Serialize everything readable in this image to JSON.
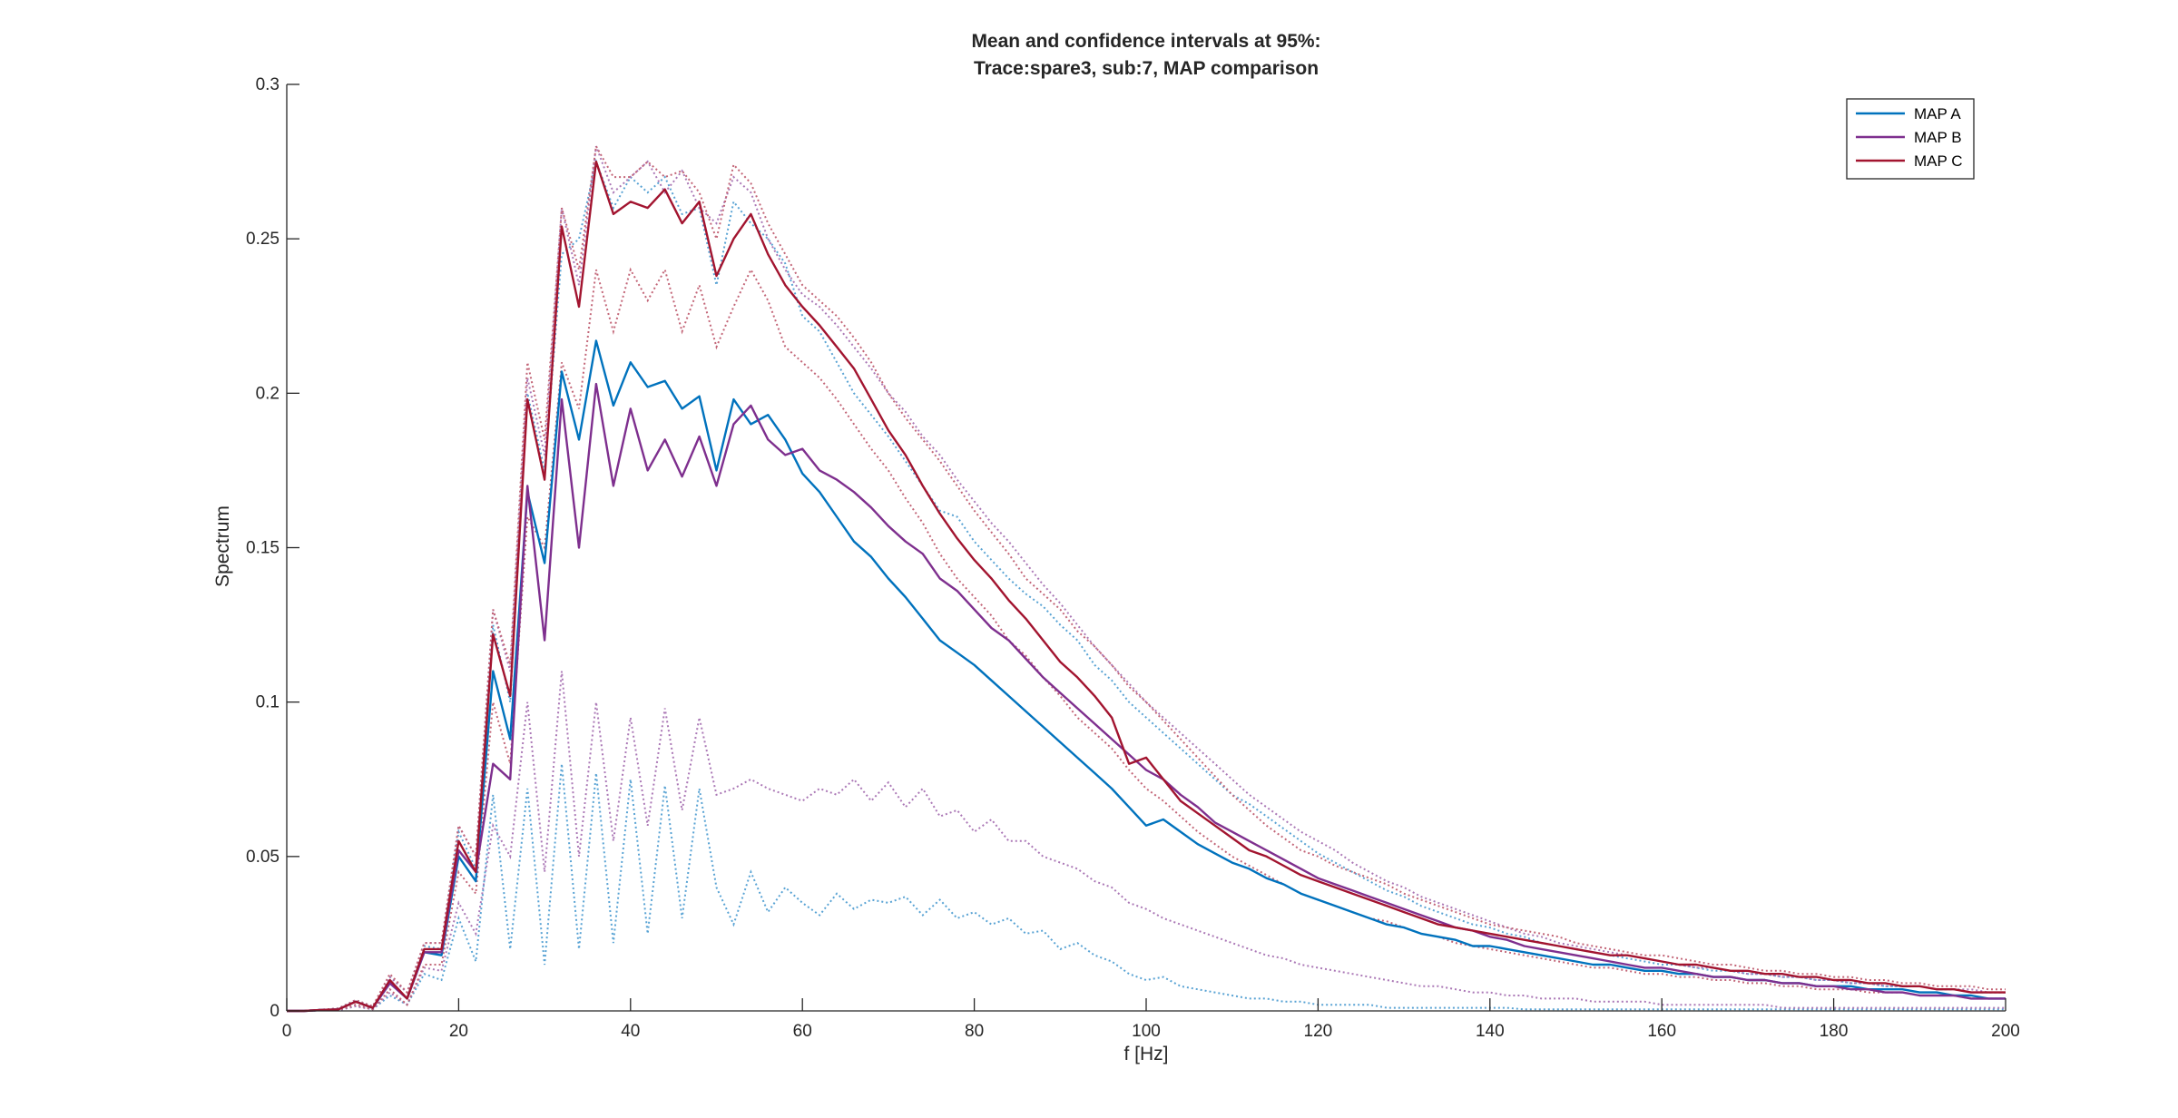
{
  "chart_data": {
    "type": "line",
    "title": "Mean and confidence intervals at 95%:",
    "subtitle": "Trace:spare3, sub:7, MAP comparison",
    "xlabel": "f [Hz]",
    "ylabel": "Spectrum",
    "xlim": [
      0,
      200
    ],
    "ylim": [
      0,
      0.3
    ],
    "xticks": [
      0,
      20,
      40,
      60,
      80,
      100,
      120,
      140,
      160,
      180,
      200
    ],
    "yticks": [
      0,
      0.05,
      0.1,
      0.15,
      0.2,
      0.25,
      0.3
    ],
    "ytick_labels": [
      "0",
      "0.05",
      "0.1",
      "0.15",
      "0.2",
      "0.25",
      "0.3"
    ],
    "grid": false,
    "legend_position": "top-right",
    "x": [
      0,
      2,
      4,
      6,
      8,
      10,
      12,
      14,
      16,
      18,
      20,
      22,
      24,
      26,
      28,
      30,
      32,
      34,
      36,
      38,
      40,
      42,
      44,
      46,
      48,
      50,
      52,
      54,
      56,
      58,
      60,
      62,
      64,
      66,
      68,
      70,
      72,
      74,
      76,
      78,
      80,
      82,
      84,
      86,
      88,
      90,
      92,
      94,
      96,
      98,
      100,
      102,
      104,
      106,
      108,
      110,
      112,
      114,
      116,
      118,
      120,
      122,
      124,
      126,
      128,
      130,
      132,
      134,
      136,
      138,
      140,
      142,
      144,
      146,
      148,
      150,
      152,
      154,
      156,
      158,
      160,
      162,
      164,
      166,
      168,
      170,
      172,
      174,
      176,
      178,
      180,
      182,
      184,
      186,
      188,
      190,
      192,
      194,
      196,
      198,
      200
    ],
    "series": [
      {
        "name": "MAP A",
        "color": "#0072BD",
        "mean": [
          0,
          0,
          0.0003,
          0.0005,
          0.003,
          0.001,
          0.009,
          0.004,
          0.019,
          0.018,
          0.05,
          0.042,
          0.11,
          0.088,
          0.168,
          0.145,
          0.207,
          0.185,
          0.217,
          0.196,
          0.21,
          0.202,
          0.204,
          0.195,
          0.199,
          0.175,
          0.198,
          0.19,
          0.193,
          0.185,
          0.174,
          0.168,
          0.16,
          0.152,
          0.147,
          0.14,
          0.134,
          0.127,
          0.12,
          0.116,
          0.112,
          0.107,
          0.102,
          0.097,
          0.092,
          0.087,
          0.082,
          0.077,
          0.072,
          0.066,
          0.06,
          0.062,
          0.058,
          0.054,
          0.051,
          0.048,
          0.046,
          0.043,
          0.041,
          0.038,
          0.036,
          0.034,
          0.032,
          0.03,
          0.028,
          0.027,
          0.025,
          0.024,
          0.023,
          0.021,
          0.021,
          0.02,
          0.019,
          0.018,
          0.017,
          0.016,
          0.015,
          0.015,
          0.014,
          0.013,
          0.013,
          0.012,
          0.012,
          0.011,
          0.011,
          0.01,
          0.01,
          0.009,
          0.009,
          0.008,
          0.008,
          0.008,
          0.007,
          0.007,
          0.007,
          0.006,
          0.006,
          0.005,
          0.005,
          0.004,
          0.004
        ],
        "ci_upper": [
          0,
          0,
          0.0004,
          0.0008,
          0.0035,
          0.0015,
          0.011,
          0.006,
          0.021,
          0.02,
          0.058,
          0.046,
          0.125,
          0.1,
          0.2,
          0.175,
          0.245,
          0.25,
          0.275,
          0.26,
          0.27,
          0.265,
          0.27,
          0.258,
          0.26,
          0.235,
          0.262,
          0.255,
          0.25,
          0.242,
          0.225,
          0.22,
          0.21,
          0.2,
          0.193,
          0.186,
          0.178,
          0.17,
          0.162,
          0.16,
          0.152,
          0.146,
          0.14,
          0.135,
          0.131,
          0.125,
          0.12,
          0.112,
          0.107,
          0.1,
          0.095,
          0.09,
          0.085,
          0.08,
          0.075,
          0.07,
          0.067,
          0.063,
          0.059,
          0.055,
          0.051,
          0.048,
          0.045,
          0.042,
          0.039,
          0.037,
          0.034,
          0.032,
          0.03,
          0.028,
          0.027,
          0.025,
          0.024,
          0.022,
          0.021,
          0.02,
          0.019,
          0.018,
          0.017,
          0.016,
          0.015,
          0.015,
          0.014,
          0.013,
          0.013,
          0.012,
          0.012,
          0.011,
          0.011,
          0.01,
          0.01,
          0.009,
          0.009,
          0.008,
          0.008,
          0.008,
          0.007,
          0.007,
          0.006,
          0.006,
          0.006
        ],
        "ci_lower": [
          0,
          0,
          0.0002,
          0.0002,
          0.0015,
          0.0005,
          0.005,
          0.002,
          0.012,
          0.01,
          0.03,
          0.016,
          0.07,
          0.02,
          0.072,
          0.015,
          0.08,
          0.02,
          0.077,
          0.022,
          0.075,
          0.025,
          0.073,
          0.03,
          0.072,
          0.04,
          0.028,
          0.045,
          0.032,
          0.04,
          0.035,
          0.031,
          0.038,
          0.033,
          0.036,
          0.035,
          0.037,
          0.031,
          0.036,
          0.03,
          0.032,
          0.028,
          0.03,
          0.025,
          0.026,
          0.02,
          0.022,
          0.018,
          0.016,
          0.012,
          0.01,
          0.011,
          0.008,
          0.007,
          0.006,
          0.005,
          0.004,
          0.004,
          0.003,
          0.003,
          0.002,
          0.002,
          0.002,
          0.002,
          0.001,
          0.001,
          0.001,
          0.001,
          0.001,
          0.001,
          0.001,
          0.001,
          0.0005,
          0.0005,
          0.0005,
          0.0005,
          0.0005,
          0.0005,
          0.0005,
          0.0005,
          0.0005,
          0.0005,
          0.0005,
          0.0005,
          0.0005,
          0.0005,
          0.0005,
          0.0005,
          0.0005,
          0.0005,
          0.0005,
          0.0005,
          0.0005,
          0.0005,
          0.0005,
          0.0005,
          0.0005,
          0.0005,
          0.0005,
          0.0005,
          0.0005
        ]
      },
      {
        "name": "MAP B",
        "color": "#7E2F8E",
        "mean": [
          0,
          0,
          0.0003,
          0.0005,
          0.003,
          0.001,
          0.009,
          0.004,
          0.019,
          0.019,
          0.052,
          0.045,
          0.08,
          0.075,
          0.17,
          0.12,
          0.198,
          0.15,
          0.203,
          0.17,
          0.195,
          0.175,
          0.185,
          0.173,
          0.186,
          0.17,
          0.19,
          0.196,
          0.185,
          0.18,
          0.182,
          0.175,
          0.172,
          0.168,
          0.163,
          0.157,
          0.152,
          0.148,
          0.14,
          0.136,
          0.13,
          0.124,
          0.12,
          0.114,
          0.108,
          0.103,
          0.098,
          0.093,
          0.088,
          0.083,
          0.078,
          0.075,
          0.07,
          0.066,
          0.061,
          0.058,
          0.055,
          0.052,
          0.049,
          0.046,
          0.043,
          0.041,
          0.039,
          0.037,
          0.035,
          0.033,
          0.031,
          0.029,
          0.027,
          0.026,
          0.024,
          0.023,
          0.021,
          0.02,
          0.019,
          0.018,
          0.017,
          0.016,
          0.015,
          0.014,
          0.014,
          0.013,
          0.012,
          0.011,
          0.011,
          0.01,
          0.01,
          0.009,
          0.009,
          0.008,
          0.008,
          0.007,
          0.007,
          0.006,
          0.006,
          0.005,
          0.005,
          0.005,
          0.004,
          0.004,
          0.004
        ],
        "ci_upper": [
          0,
          0,
          0.0004,
          0.0008,
          0.0035,
          0.0015,
          0.011,
          0.006,
          0.022,
          0.022,
          0.06,
          0.05,
          0.13,
          0.11,
          0.205,
          0.18,
          0.26,
          0.235,
          0.28,
          0.265,
          0.27,
          0.275,
          0.265,
          0.272,
          0.26,
          0.255,
          0.27,
          0.265,
          0.25,
          0.24,
          0.232,
          0.228,
          0.222,
          0.215,
          0.208,
          0.2,
          0.194,
          0.186,
          0.18,
          0.172,
          0.165,
          0.158,
          0.152,
          0.145,
          0.138,
          0.132,
          0.125,
          0.118,
          0.112,
          0.106,
          0.1,
          0.095,
          0.09,
          0.085,
          0.08,
          0.075,
          0.07,
          0.066,
          0.062,
          0.058,
          0.055,
          0.052,
          0.048,
          0.045,
          0.042,
          0.04,
          0.037,
          0.035,
          0.033,
          0.031,
          0.029,
          0.027,
          0.025,
          0.024,
          0.022,
          0.021,
          0.02,
          0.019,
          0.018,
          0.017,
          0.016,
          0.015,
          0.014,
          0.014,
          0.013,
          0.012,
          0.012,
          0.011,
          0.011,
          0.01,
          0.01,
          0.009,
          0.009,
          0.008,
          0.008,
          0.008,
          0.007,
          0.007,
          0.007,
          0.006,
          0.006
        ],
        "ci_lower": [
          0,
          0,
          0.0002,
          0.0002,
          0.0015,
          0.0005,
          0.006,
          0.002,
          0.014,
          0.013,
          0.035,
          0.025,
          0.06,
          0.05,
          0.1,
          0.045,
          0.11,
          0.05,
          0.1,
          0.055,
          0.095,
          0.06,
          0.098,
          0.065,
          0.095,
          0.07,
          0.072,
          0.075,
          0.072,
          0.07,
          0.068,
          0.072,
          0.07,
          0.075,
          0.068,
          0.074,
          0.066,
          0.072,
          0.063,
          0.065,
          0.058,
          0.062,
          0.055,
          0.055,
          0.05,
          0.048,
          0.046,
          0.042,
          0.04,
          0.035,
          0.033,
          0.03,
          0.028,
          0.026,
          0.024,
          0.022,
          0.02,
          0.018,
          0.017,
          0.015,
          0.014,
          0.013,
          0.012,
          0.011,
          0.01,
          0.009,
          0.008,
          0.008,
          0.007,
          0.006,
          0.006,
          0.005,
          0.005,
          0.004,
          0.004,
          0.004,
          0.003,
          0.003,
          0.003,
          0.003,
          0.002,
          0.002,
          0.002,
          0.002,
          0.002,
          0.002,
          0.002,
          0.001,
          0.001,
          0.001,
          0.001,
          0.001,
          0.001,
          0.001,
          0.001,
          0.001,
          0.001,
          0.001,
          0.001,
          0.001,
          0.001
        ]
      },
      {
        "name": "MAP C",
        "color": "#A2142F",
        "mean": [
          0,
          0,
          0.0003,
          0.0005,
          0.003,
          0.001,
          0.01,
          0.004,
          0.02,
          0.02,
          0.055,
          0.045,
          0.122,
          0.102,
          0.198,
          0.172,
          0.254,
          0.228,
          0.275,
          0.258,
          0.262,
          0.26,
          0.266,
          0.255,
          0.262,
          0.238,
          0.25,
          0.258,
          0.245,
          0.235,
          0.228,
          0.222,
          0.215,
          0.208,
          0.198,
          0.188,
          0.18,
          0.17,
          0.161,
          0.153,
          0.146,
          0.14,
          0.133,
          0.127,
          0.12,
          0.113,
          0.108,
          0.102,
          0.095,
          0.08,
          0.082,
          0.075,
          0.068,
          0.064,
          0.06,
          0.056,
          0.052,
          0.05,
          0.047,
          0.044,
          0.042,
          0.04,
          0.038,
          0.036,
          0.034,
          0.032,
          0.03,
          0.028,
          0.027,
          0.026,
          0.025,
          0.024,
          0.023,
          0.022,
          0.021,
          0.02,
          0.019,
          0.018,
          0.018,
          0.017,
          0.016,
          0.015,
          0.015,
          0.014,
          0.013,
          0.013,
          0.012,
          0.012,
          0.011,
          0.011,
          0.01,
          0.01,
          0.009,
          0.009,
          0.008,
          0.008,
          0.007,
          0.007,
          0.006,
          0.006,
          0.006
        ],
        "ci_upper": [
          0,
          0,
          0.0004,
          0.0008,
          0.0035,
          0.0015,
          0.012,
          0.006,
          0.022,
          0.022,
          0.06,
          0.05,
          0.13,
          0.112,
          0.21,
          0.185,
          0.26,
          0.24,
          0.28,
          0.27,
          0.27,
          0.275,
          0.27,
          0.272,
          0.265,
          0.25,
          0.274,
          0.268,
          0.255,
          0.245,
          0.235,
          0.23,
          0.225,
          0.218,
          0.21,
          0.2,
          0.192,
          0.185,
          0.178,
          0.17,
          0.162,
          0.155,
          0.148,
          0.14,
          0.135,
          0.13,
          0.123,
          0.118,
          0.112,
          0.105,
          0.1,
          0.094,
          0.088,
          0.082,
          0.076,
          0.07,
          0.065,
          0.06,
          0.056,
          0.052,
          0.05,
          0.047,
          0.045,
          0.043,
          0.041,
          0.038,
          0.036,
          0.034,
          0.032,
          0.03,
          0.028,
          0.027,
          0.026,
          0.025,
          0.024,
          0.022,
          0.021,
          0.02,
          0.019,
          0.018,
          0.018,
          0.017,
          0.016,
          0.015,
          0.015,
          0.014,
          0.013,
          0.013,
          0.012,
          0.012,
          0.011,
          0.011,
          0.01,
          0.01,
          0.009,
          0.009,
          0.008,
          0.008,
          0.008,
          0.007,
          0.007
        ],
        "ci_lower": [
          0,
          0,
          0.0002,
          0.0002,
          0.002,
          0.0005,
          0.007,
          0.002,
          0.015,
          0.015,
          0.045,
          0.038,
          0.1,
          0.08,
          0.16,
          0.15,
          0.21,
          0.195,
          0.24,
          0.22,
          0.24,
          0.23,
          0.24,
          0.22,
          0.235,
          0.215,
          0.228,
          0.24,
          0.23,
          0.215,
          0.21,
          0.205,
          0.198,
          0.19,
          0.182,
          0.175,
          0.166,
          0.158,
          0.148,
          0.14,
          0.134,
          0.128,
          0.12,
          0.115,
          0.108,
          0.102,
          0.095,
          0.09,
          0.085,
          0.078,
          0.072,
          0.068,
          0.063,
          0.058,
          0.054,
          0.05,
          0.047,
          0.044,
          0.041,
          0.038,
          0.036,
          0.034,
          0.032,
          0.03,
          0.029,
          0.027,
          0.025,
          0.024,
          0.022,
          0.021,
          0.02,
          0.019,
          0.018,
          0.017,
          0.016,
          0.015,
          0.014,
          0.014,
          0.013,
          0.012,
          0.012,
          0.011,
          0.011,
          0.01,
          0.01,
          0.009,
          0.009,
          0.008,
          0.008,
          0.007,
          0.007,
          0.007,
          0.006,
          0.006,
          0.006,
          0.005,
          0.005,
          0.005,
          0.004,
          0.004,
          0.004
        ]
      }
    ]
  }
}
